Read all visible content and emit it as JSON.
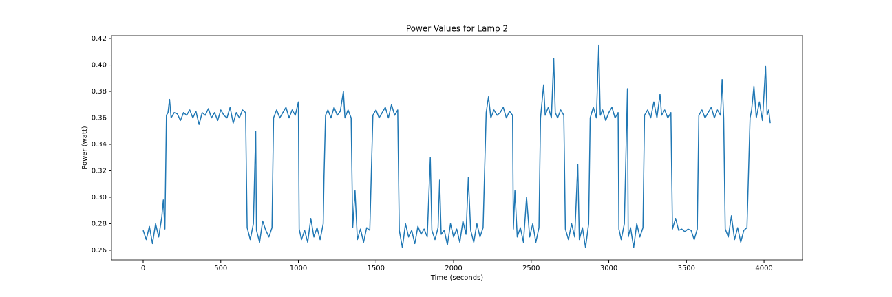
{
  "chart_data": {
    "type": "line",
    "title": "Power Values for Lamp 2",
    "xlabel": "Time (seconds)",
    "ylabel": "Power (watt)",
    "xlim": [
      -204,
      4248
    ],
    "ylim": [
      0.2527,
      0.4221
    ],
    "xticks": [
      0,
      500,
      1000,
      1500,
      2000,
      2500,
      3000,
      3500,
      4000
    ],
    "yticks": [
      0.26,
      0.28,
      {
        "value": 0.3,
        "label": "0.30"
      },
      0.32,
      0.34,
      0.36,
      0.38,
      {
        "value": 0.4,
        "label": "0.40"
      },
      0.42
    ],
    "grid": false,
    "x": [
      0,
      20,
      40,
      60,
      80,
      100,
      120,
      130,
      140,
      150,
      160,
      170,
      180,
      200,
      220,
      240,
      260,
      280,
      300,
      320,
      340,
      360,
      380,
      400,
      420,
      440,
      460,
      480,
      500,
      520,
      540,
      560,
      580,
      600,
      620,
      640,
      660,
      665,
      670,
      690,
      710,
      725,
      730,
      750,
      770,
      790,
      810,
      830,
      840,
      860,
      880,
      900,
      920,
      940,
      960,
      980,
      1000,
      1005,
      1020,
      1040,
      1060,
      1080,
      1100,
      1120,
      1140,
      1160,
      1165,
      1175,
      1190,
      1210,
      1230,
      1250,
      1270,
      1290,
      1300,
      1320,
      1340,
      1350,
      1365,
      1380,
      1400,
      1420,
      1440,
      1460,
      1480,
      1500,
      1520,
      1540,
      1560,
      1580,
      1600,
      1620,
      1640,
      1650,
      1670,
      1690,
      1710,
      1730,
      1750,
      1770,
      1790,
      1810,
      1830,
      1850,
      1860,
      1880,
      1900,
      1910,
      1920,
      1940,
      1960,
      1980,
      2000,
      2020,
      2040,
      2060,
      2080,
      2095,
      2110,
      2130,
      2150,
      2170,
      2190,
      2210,
      2225,
      2240,
      2260,
      2280,
      2300,
      2320,
      2340,
      2360,
      2380,
      2385,
      2395,
      2410,
      2430,
      2450,
      2470,
      2490,
      2510,
      2530,
      2550,
      2560,
      2580,
      2590,
      2610,
      2630,
      2645,
      2655,
      2670,
      2690,
      2710,
      2720,
      2740,
      2760,
      2780,
      2800,
      2810,
      2830,
      2850,
      2870,
      2880,
      2900,
      2920,
      2935,
      2945,
      2960,
      2980,
      3000,
      3020,
      3040,
      3060,
      3065,
      3080,
      3100,
      3120,
      3125,
      3140,
      3160,
      3180,
      3200,
      3220,
      3230,
      3250,
      3270,
      3290,
      3310,
      3330,
      3340,
      3360,
      3380,
      3400,
      3410,
      3430,
      3450,
      3470,
      3490,
      3510,
      3530,
      3550,
      3570,
      3580,
      3600,
      3620,
      3640,
      3660,
      3680,
      3700,
      3720,
      3730,
      3740,
      3750,
      3770,
      3790,
      3810,
      3830,
      3850,
      3870,
      3890,
      3910,
      3920,
      3935,
      3950,
      3970,
      3990,
      4010,
      4020,
      4030,
      4040
    ],
    "series": [
      {
        "name": "Power",
        "color": "#1f77b4",
        "values": [
          0.275,
          0.268,
          0.278,
          0.265,
          0.28,
          0.27,
          0.285,
          0.298,
          0.276,
          0.362,
          0.364,
          0.374,
          0.36,
          0.364,
          0.363,
          0.358,
          0.364,
          0.362,
          0.366,
          0.36,
          0.365,
          0.355,
          0.364,
          0.362,
          0.367,
          0.36,
          0.364,
          0.358,
          0.366,
          0.362,
          0.36,
          0.368,
          0.356,
          0.364,
          0.36,
          0.366,
          0.364,
          0.318,
          0.277,
          0.268,
          0.28,
          0.35,
          0.275,
          0.266,
          0.282,
          0.275,
          0.27,
          0.277,
          0.36,
          0.366,
          0.36,
          0.364,
          0.368,
          0.36,
          0.366,
          0.362,
          0.372,
          0.276,
          0.268,
          0.275,
          0.266,
          0.284,
          0.27,
          0.277,
          0.268,
          0.28,
          0.315,
          0.362,
          0.366,
          0.36,
          0.368,
          0.362,
          0.365,
          0.38,
          0.36,
          0.366,
          0.36,
          0.277,
          0.305,
          0.268,
          0.276,
          0.266,
          0.277,
          0.275,
          0.362,
          0.366,
          0.36,
          0.364,
          0.368,
          0.36,
          0.37,
          0.362,
          0.366,
          0.275,
          0.262,
          0.28,
          0.27,
          0.275,
          0.265,
          0.278,
          0.272,
          0.276,
          0.27,
          0.33,
          0.275,
          0.268,
          0.277,
          0.313,
          0.272,
          0.275,
          0.264,
          0.28,
          0.27,
          0.276,
          0.266,
          0.282,
          0.272,
          0.315,
          0.275,
          0.266,
          0.28,
          0.27,
          0.277,
          0.364,
          0.376,
          0.36,
          0.366,
          0.362,
          0.364,
          0.368,
          0.36,
          0.365,
          0.362,
          0.276,
          0.305,
          0.27,
          0.277,
          0.266,
          0.3,
          0.27,
          0.28,
          0.266,
          0.277,
          0.36,
          0.385,
          0.362,
          0.368,
          0.36,
          0.405,
          0.364,
          0.36,
          0.366,
          0.362,
          0.276,
          0.268,
          0.28,
          0.27,
          0.325,
          0.268,
          0.277,
          0.262,
          0.28,
          0.36,
          0.368,
          0.36,
          0.415,
          0.362,
          0.366,
          0.358,
          0.364,
          0.368,
          0.36,
          0.364,
          0.276,
          0.268,
          0.28,
          0.382,
          0.27,
          0.277,
          0.262,
          0.28,
          0.27,
          0.277,
          0.362,
          0.366,
          0.36,
          0.372,
          0.36,
          0.378,
          0.362,
          0.366,
          0.36,
          0.364,
          0.276,
          0.284,
          0.275,
          0.276,
          0.274,
          0.276,
          0.275,
          0.268,
          0.276,
          0.362,
          0.366,
          0.36,
          0.364,
          0.368,
          0.36,
          0.366,
          0.362,
          0.389,
          0.36,
          0.276,
          0.27,
          0.286,
          0.268,
          0.277,
          0.266,
          0.275,
          0.277,
          0.36,
          0.366,
          0.384,
          0.36,
          0.372,
          0.358,
          0.399,
          0.362,
          0.366,
          0.356
        ]
      }
    ]
  }
}
